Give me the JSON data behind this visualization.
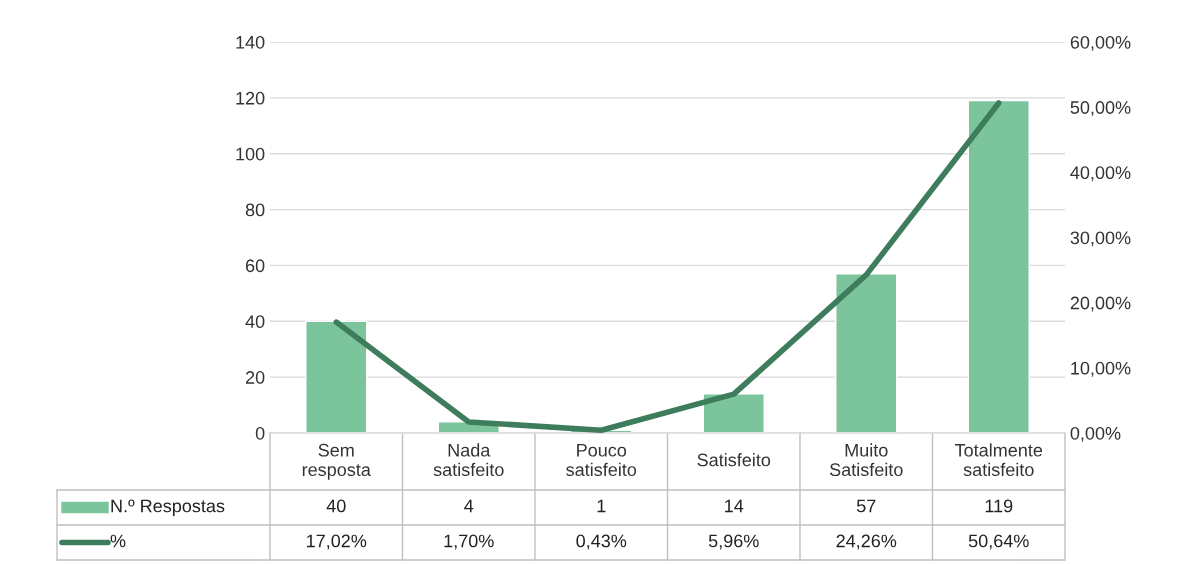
{
  "chart_data": {
    "type": "bar",
    "categories": [
      "Sem\nresposta",
      "Nada\nsatisfeito",
      "Pouco\nsatisfeito",
      "Satisfeito",
      "Muito\nSatisfeito",
      "Totalmente\nsatisfeito"
    ],
    "series": [
      {
        "name": "N.º Respostas",
        "color": "#7cc59c",
        "values": [
          40,
          4,
          1,
          14,
          57,
          119
        ],
        "value_labels": [
          "40",
          "4",
          "1",
          "14",
          "57",
          "119"
        ]
      },
      {
        "name": "%",
        "type": "line",
        "axis": "y2",
        "color": "#3e7d5c",
        "values": [
          17.02,
          1.7,
          0.43,
          5.96,
          24.26,
          50.64
        ],
        "value_labels": [
          "17,02%",
          "1,70%",
          "0,43%",
          "5,96%",
          "24,26%",
          "50,64%"
        ]
      }
    ],
    "ylim": [
      0,
      140
    ],
    "yticks": [
      0,
      20,
      40,
      60,
      80,
      100,
      120,
      140
    ],
    "y2lim": [
      0,
      60
    ],
    "y2ticks": [
      {
        "value": 0,
        "label": "0,00%"
      },
      {
        "value": 10,
        "label": "10,00%"
      },
      {
        "value": 20,
        "label": "20,00%"
      },
      {
        "value": 30,
        "label": "30,00%"
      },
      {
        "value": 40,
        "label": "40,00%"
      },
      {
        "value": 50,
        "label": "50,00%"
      },
      {
        "value": 60,
        "label": "60,00%"
      }
    ],
    "grid": "y",
    "legend": "bottom",
    "marker": "none",
    "line_style": "solid"
  }
}
